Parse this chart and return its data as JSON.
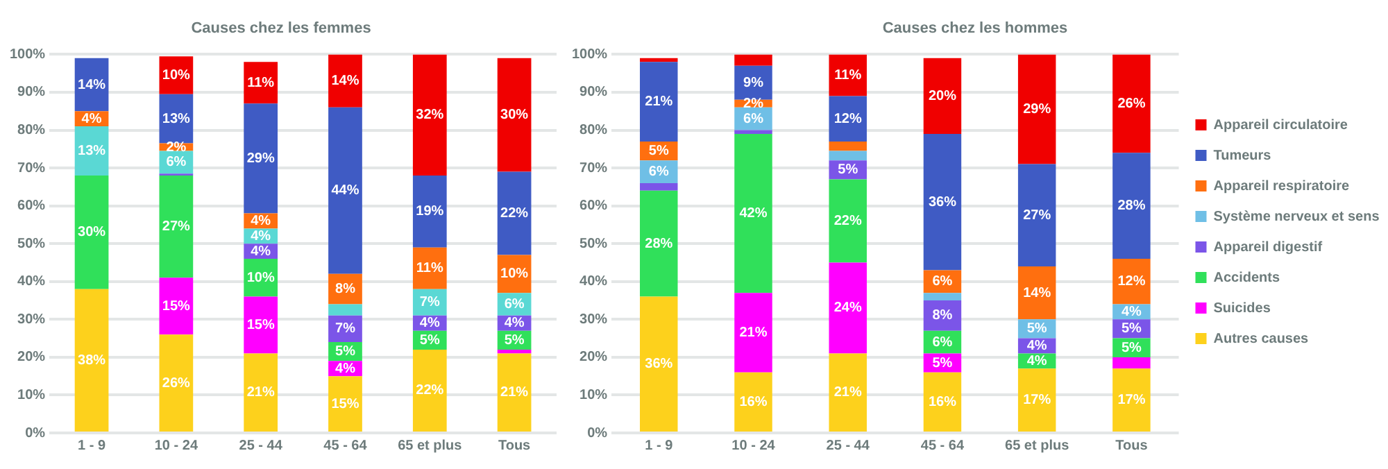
{
  "chart_data": [
    {
      "type": "bar",
      "stacked": true,
      "title": "Causes chez les femmes",
      "categories": [
        "1 - 9",
        "10 - 24",
        "25 - 44",
        "45 - 64",
        "65 et plus",
        "Tous"
      ],
      "ylim": [
        0,
        100
      ],
      "yticks": [
        {
          "value": 0,
          "label": "0%"
        },
        {
          "value": 10,
          "label": "10%"
        },
        {
          "value": 20,
          "label": "20%"
        },
        {
          "value": 30,
          "label": "30%"
        },
        {
          "value": 40,
          "label": "40%"
        },
        {
          "value": 50,
          "label": "50%"
        },
        {
          "value": 60,
          "label": "60%"
        },
        {
          "value": 70,
          "label": "70%"
        },
        {
          "value": 80,
          "label": "80%"
        },
        {
          "value": 90,
          "label": "90%"
        },
        {
          "value": 100,
          "label": "100%"
        }
      ],
      "grid": "y",
      "legend": false,
      "series": [
        {
          "color": "#fdd11c",
          "values": [
            38,
            26,
            21,
            15,
            22,
            21
          ],
          "value_labels": [
            "38%",
            "26%",
            "21%",
            "15%",
            "22%",
            "21%"
          ]
        },
        {
          "color": "#ff00ff",
          "values": [
            null,
            15,
            15,
            4,
            null,
            1
          ],
          "value_labels": [
            null,
            "15%",
            "15%",
            "4%",
            null,
            null
          ]
        },
        {
          "color": "#30e05a",
          "values": [
            30,
            27,
            10,
            5,
            5,
            5
          ],
          "value_labels": [
            "30%",
            "27%",
            "10%",
            "5%",
            "5%",
            "5%"
          ]
        },
        {
          "color": "#7b55e8",
          "values": [
            null,
            0.5,
            4,
            7,
            4,
            4
          ],
          "value_labels": [
            null,
            null,
            "4%",
            "7%",
            "4%",
            "4%"
          ]
        },
        {
          "color": "#5ad8d4",
          "values": [
            13,
            6,
            4,
            3,
            7,
            6
          ],
          "value_labels": [
            "13%",
            "6%",
            "4%",
            null,
            "7%",
            "6%"
          ]
        },
        {
          "color": "#ff6f0f",
          "values": [
            4,
            2,
            4,
            8,
            11,
            10
          ],
          "value_labels": [
            "4%",
            "2%",
            "4%",
            "8%",
            "11%",
            "10%"
          ]
        },
        {
          "color": "#3f5bc4",
          "values": [
            14,
            13,
            29,
            44,
            19,
            22
          ],
          "value_labels": [
            "14%",
            "13%",
            "29%",
            "44%",
            "19%",
            "22%"
          ]
        },
        {
          "color": "#f00000",
          "values": [
            null,
            10,
            11,
            14,
            32,
            30
          ],
          "value_labels": [
            null,
            "10%",
            "11%",
            "14%",
            "32%",
            "30%"
          ]
        }
      ]
    },
    {
      "type": "bar",
      "stacked": true,
      "title": "Causes chez les hommes",
      "categories": [
        "1 - 9",
        "10 - 24",
        "25 - 44",
        "45 - 64",
        "65 et plus",
        "Tous"
      ],
      "ylim": [
        0,
        100
      ],
      "yticks": [
        {
          "value": 0,
          "label": "0%"
        },
        {
          "value": 10,
          "label": "10%"
        },
        {
          "value": 20,
          "label": "20%"
        },
        {
          "value": 30,
          "label": "30%"
        },
        {
          "value": 40,
          "label": "40%"
        },
        {
          "value": 50,
          "label": "50%"
        },
        {
          "value": 60,
          "label": "60%"
        },
        {
          "value": 70,
          "label": "70%"
        },
        {
          "value": 80,
          "label": "80%"
        },
        {
          "value": 90,
          "label": "90%"
        },
        {
          "value": 100,
          "label": "100%"
        }
      ],
      "grid": "y",
      "legend": "right",
      "series": [
        {
          "name": "Autres causes",
          "color": "#fdd11c",
          "values": [
            36,
            16,
            21,
            16,
            17,
            17
          ],
          "value_labels": [
            "36%",
            "16%",
            "21%",
            "16%",
            "17%",
            "17%"
          ]
        },
        {
          "name": "Suicides",
          "color": "#ff00ff",
          "values": [
            null,
            21,
            24,
            5,
            null,
            3
          ],
          "value_labels": [
            null,
            "21%",
            "24%",
            "5%",
            null,
            null
          ]
        },
        {
          "name": "Accidents",
          "color": "#30e05a",
          "values": [
            28,
            42,
            22,
            6,
            4,
            5
          ],
          "value_labels": [
            "28%",
            "42%",
            "22%",
            "6%",
            "4%",
            "5%"
          ]
        },
        {
          "name": "Appareil digestif",
          "color": "#7b55e8",
          "values": [
            2,
            1,
            5,
            8,
            4,
            5
          ],
          "value_labels": [
            null,
            null,
            "5%",
            "8%",
            "4%",
            "5%"
          ]
        },
        {
          "name": "Système nerveux et sens",
          "color": "#6fbfe6",
          "values": [
            6,
            6,
            2.5,
            2,
            5,
            4
          ],
          "value_labels": [
            "6%",
            "6%",
            null,
            null,
            "5%",
            "4%"
          ]
        },
        {
          "name": "Appareil respiratoire",
          "color": "#ff6f0f",
          "values": [
            5,
            2,
            2.5,
            6,
            14,
            12
          ],
          "value_labels": [
            "5%",
            "2%",
            null,
            "6%",
            "14%",
            "12%"
          ]
        },
        {
          "name": "Tumeurs",
          "color": "#3f5bc4",
          "values": [
            21,
            9,
            12,
            36,
            27,
            28
          ],
          "value_labels": [
            "21%",
            "9%",
            "12%",
            "36%",
            "27%",
            "28%"
          ]
        },
        {
          "name": "Appareil circulatoire",
          "color": "#f00000",
          "values": [
            1,
            3,
            11,
            20,
            29,
            26
          ],
          "value_labels": [
            null,
            null,
            "11%",
            "20%",
            "29%",
            "26%"
          ]
        }
      ]
    }
  ]
}
